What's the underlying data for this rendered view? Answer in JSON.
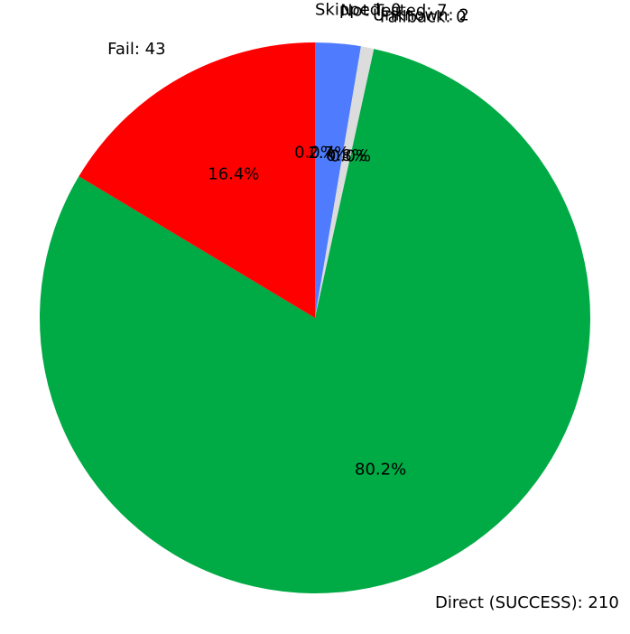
{
  "chart_data": {
    "type": "pie",
    "title": "",
    "start_angle_deg": 90,
    "direction": "clockwise",
    "slices": [
      {
        "label": "Skipped: 0",
        "value": 0,
        "pct_label": "0.0%",
        "color": "#999999"
      },
      {
        "label": "Not Tested: 7",
        "value": 7,
        "pct_label": "2.7%",
        "color": "#4f7cff"
      },
      {
        "label": "Unknown: 2",
        "value": 2,
        "pct_label": "0.8%",
        "color": "#dcdcdc"
      },
      {
        "label": "Fallback: 0",
        "value": 0,
        "pct_label": "0.0%",
        "color": "#f5a623"
      },
      {
        "label": "Direct (SUCCESS): 210",
        "value": 210,
        "pct_label": "80.2%",
        "color": "#00aa44"
      },
      {
        "label": "Fail: 43",
        "value": 43,
        "pct_label": "16.4%",
        "color": "#ff0000"
      }
    ]
  }
}
